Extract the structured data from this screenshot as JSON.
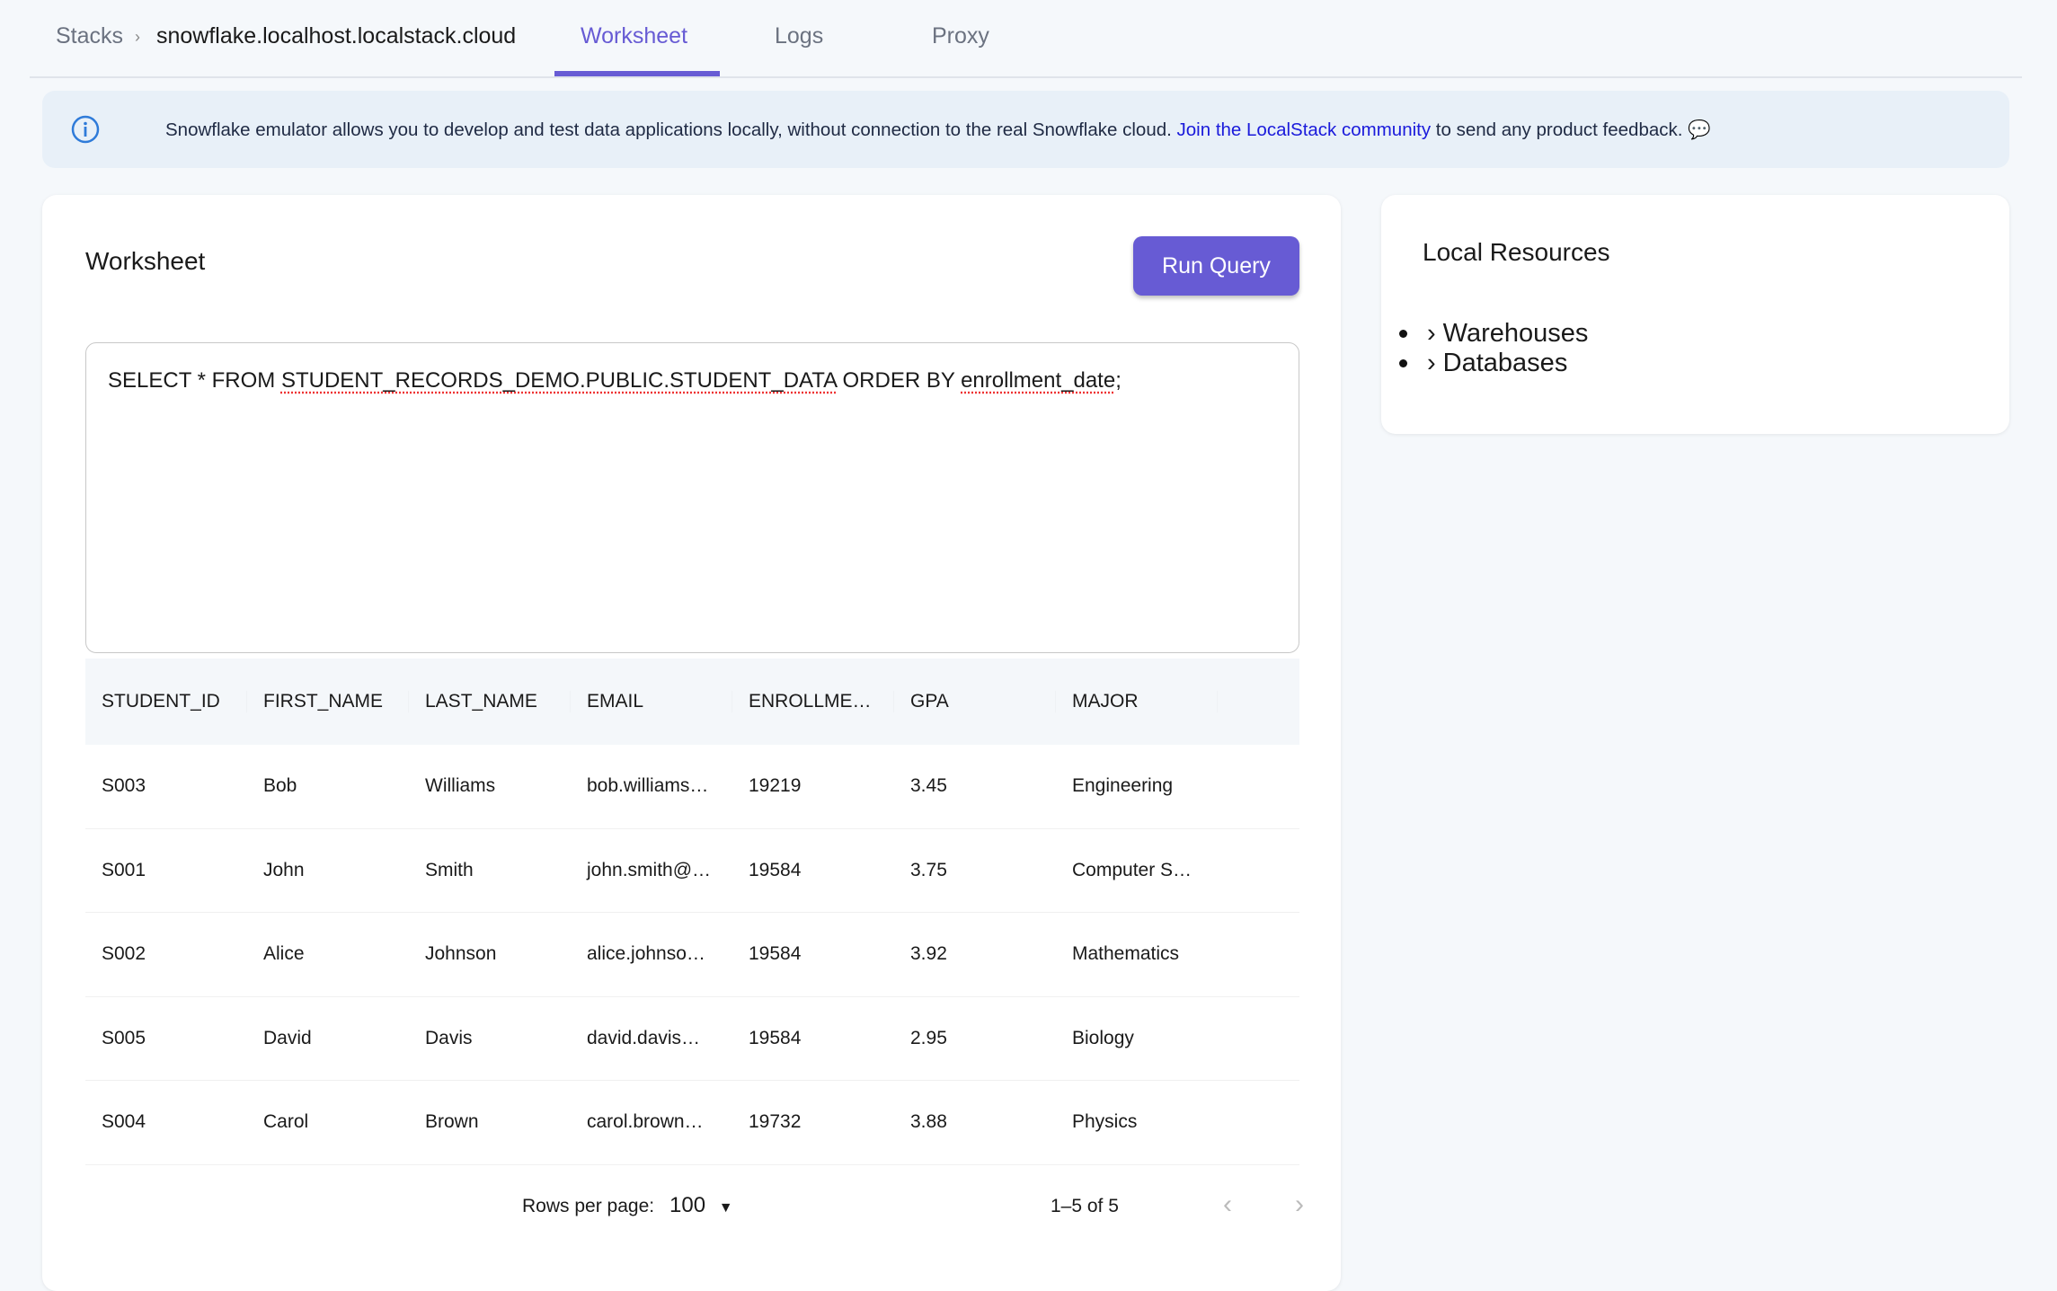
{
  "breadcrumb": {
    "root": "Stacks",
    "separator": "›",
    "current": "snowflake.localhost.localstack.cloud"
  },
  "tabs": [
    {
      "label": "Worksheet",
      "active": true
    },
    {
      "label": "Logs"
    },
    {
      "label": "Proxy"
    }
  ],
  "banner": {
    "text": "Snowflake emulator allows you to develop and test data applications locally, without connection to the real Snowflake cloud.",
    "link": "Join the LocalStack community",
    "suffix": "to send any product feedback.",
    "icon": "info-icon"
  },
  "worksheet": {
    "title": "Worksheet",
    "run_label": "Run Query",
    "query": {
      "p1": "SELECT * FROM ",
      "p2": "STUDENT_RECORDS_DEMO.PUBLIC.STUDENT_DATA",
      "p3": " ORDER BY ",
      "p4": "enrollment_date",
      ";": ";"
    }
  },
  "table": {
    "headers": [
      "STUDENT_ID",
      "FIRST_NAME",
      "LAST_NAME",
      "EMAIL",
      "ENROLLME…",
      "GPA",
      "MAJOR"
    ],
    "rows": [
      [
        "S003",
        "Bob",
        "Williams",
        "bob.williams…",
        "19219",
        "3.45",
        "Engineering"
      ],
      [
        "S001",
        "John",
        "Smith",
        "john.smith@…",
        "19584",
        "3.75",
        "Computer S…"
      ],
      [
        "S002",
        "Alice",
        "Johnson",
        "alice.johnso…",
        "19584",
        "3.92",
        "Mathematics"
      ],
      [
        "S005",
        "David",
        "Davis",
        "david.davis…",
        "19584",
        "2.95",
        "Biology"
      ],
      [
        "S004",
        "Carol",
        "Brown",
        "carol.brown…",
        "19732",
        "3.88",
        "Physics"
      ]
    ]
  },
  "pagination": {
    "rows_label": "Rows per page:",
    "rows_value": "100",
    "range": "1–5 of 5"
  },
  "resources": {
    "title": "Local Resources",
    "items": [
      "Warehouses",
      "Databases"
    ]
  },
  "colors": {
    "accent": "#675bd4",
    "link": "#1a1adb",
    "banner_bg": "#e8f0f8"
  }
}
